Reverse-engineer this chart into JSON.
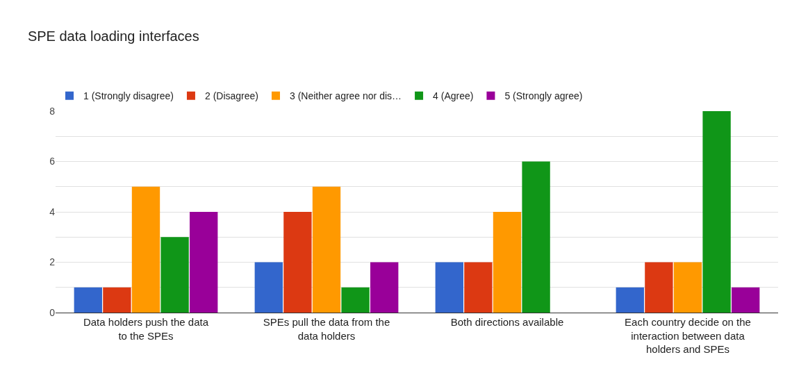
{
  "chart_data": {
    "type": "bar",
    "title": "SPE data loading interfaces",
    "categories": [
      "Data holders push the data to the SPEs",
      "SPEs pull the data from the data holders",
      "Both directions available",
      "Each country decide on the interaction between data holders and SPEs"
    ],
    "series": [
      {
        "name": "1 (Strongly disagree)",
        "color": "#3366cc",
        "values": [
          1,
          2,
          2,
          1
        ]
      },
      {
        "name": "2 (Disagree)",
        "color": "#dc3912",
        "values": [
          1,
          4,
          2,
          2
        ]
      },
      {
        "name": "3 (Neither agree nor dis…",
        "color": "#ff9900",
        "values": [
          5,
          5,
          4,
          2
        ]
      },
      {
        "name": "4 (Agree)",
        "color": "#109618",
        "values": [
          3,
          1,
          6,
          8
        ]
      },
      {
        "name": "5 (Strongly agree)",
        "color": "#990099",
        "values": [
          4,
          2,
          0,
          1
        ]
      }
    ],
    "ylim": [
      0,
      8
    ],
    "yticks": [
      0,
      {
        "value": 1,
        "label": null
      },
      2,
      {
        "value": 3,
        "label": null
      },
      4,
      {
        "value": 5,
        "label": null
      },
      6,
      {
        "value": 7,
        "label": null
      },
      8
    ],
    "grid": "y",
    "legend": "top"
  }
}
